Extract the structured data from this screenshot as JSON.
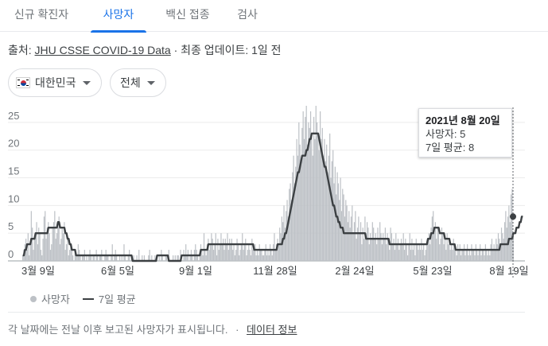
{
  "tabs": [
    {
      "label": "신규 확진자"
    },
    {
      "label": "사망자"
    },
    {
      "label": "백신 접종"
    },
    {
      "label": "검사"
    }
  ],
  "active_tab": "사망자",
  "source": {
    "prefix": "출처: ",
    "link": "JHU CSSE COVID-19 Data",
    "suffix": " · 최종 업데이트: 1일 전"
  },
  "filters": {
    "country": "대한민국",
    "country_flag_icon": "south-korea-flag-icon",
    "scope": "전체"
  },
  "tooltip": {
    "date": "2021년 8월 20일",
    "deaths": "사망자: 5",
    "average": "7일 평균: 8"
  },
  "legend": {
    "bars": "사망자",
    "line": "7일 평균"
  },
  "footer": {
    "note": "각 날짜에는 전날 이후 보고된 사망자가 표시됩니다.",
    "separator": "·",
    "link": "데이터 정보"
  },
  "colors": {
    "accent": "#1a73e8",
    "bars": "#bdc1c6",
    "line": "#3c4043"
  },
  "chart_data": {
    "type": "bar",
    "title": "",
    "xlabel": "",
    "ylabel": "",
    "ylim": [
      0,
      28
    ],
    "yticks": [
      0,
      5,
      10,
      15,
      20,
      25
    ],
    "x_tick_labels": [
      "3월 9일",
      "6월 5일",
      "9월 1일",
      "11월 28일",
      "2월 24일",
      "5월 23일",
      "8월 19일"
    ],
    "grid": true,
    "legend_position": "bottom-left",
    "series": [
      {
        "name": "사망자",
        "type": "bar",
        "values": [
          1,
          2,
          3,
          4,
          2,
          5,
          1,
          3,
          9,
          6,
          2,
          4,
          5,
          7,
          3,
          6,
          5,
          2,
          1,
          4,
          8,
          9,
          4,
          6,
          7,
          5,
          2,
          3,
          6,
          7,
          9,
          4,
          5,
          6,
          8,
          3,
          4,
          6,
          5,
          7,
          2,
          3,
          4,
          1,
          2,
          3,
          2,
          1,
          0,
          2,
          1,
          1,
          3,
          2,
          1,
          0,
          1,
          1,
          2,
          0,
          1,
          0,
          1,
          2,
          1,
          0,
          1,
          1,
          0,
          2,
          1,
          0,
          1,
          1,
          2,
          0,
          0,
          1,
          2,
          1,
          1,
          0,
          0,
          1,
          3,
          0,
          1,
          2,
          1,
          0,
          0,
          1,
          0,
          1,
          0,
          3,
          1,
          0,
          0,
          1,
          2,
          0,
          1,
          0,
          1,
          0,
          0,
          1,
          0,
          2,
          0,
          0,
          1,
          0,
          1,
          0,
          0,
          0,
          1,
          2,
          0,
          1,
          0,
          0,
          1,
          0,
          0,
          0,
          1,
          0,
          2,
          1,
          0,
          0,
          1,
          1,
          0,
          2,
          0,
          0,
          0,
          1,
          0,
          1,
          0,
          1,
          1,
          0,
          2,
          0,
          0,
          2,
          1,
          3,
          1,
          2,
          0,
          1,
          2,
          1,
          0,
          2,
          3,
          2,
          1,
          0,
          1,
          3,
          2,
          1,
          5,
          2,
          1,
          3,
          4,
          2,
          3,
          5,
          4,
          2,
          3,
          5,
          1,
          4,
          2,
          3,
          5,
          3,
          4,
          2,
          4,
          3,
          5,
          2,
          4,
          3,
          4,
          2,
          3,
          1,
          2,
          4,
          3,
          1,
          2,
          3,
          5,
          2,
          3,
          4,
          1,
          2,
          3,
          2,
          1,
          4,
          2,
          2,
          3,
          1,
          2,
          1,
          3,
          2,
          2,
          1,
          1,
          2,
          3,
          1,
          2,
          1,
          3,
          2,
          1,
          3,
          5,
          2,
          3,
          4,
          3,
          6,
          5,
          8,
          7,
          10,
          6,
          9,
          11,
          8,
          13,
          14,
          11,
          16,
          19,
          14,
          17,
          22,
          19,
          25,
          21,
          18,
          24,
          27,
          22,
          26,
          28,
          21,
          25,
          24,
          27,
          23,
          19,
          26,
          22,
          28,
          25,
          23,
          20,
          27,
          22,
          24,
          19,
          22,
          18,
          21,
          16,
          19,
          23,
          15,
          18,
          20,
          14,
          17,
          12,
          16,
          14,
          11,
          15,
          9,
          13,
          12,
          8,
          11,
          10,
          7,
          9,
          6,
          8,
          10,
          5,
          7,
          9,
          4,
          6,
          8,
          5,
          7,
          3,
          6,
          4,
          8,
          5,
          7,
          6,
          3,
          5,
          4,
          7,
          6,
          4,
          5,
          3,
          6,
          4,
          7,
          5,
          3,
          5,
          4,
          6,
          3,
          5,
          4,
          2,
          6,
          5,
          3,
          4,
          2,
          5,
          3,
          4,
          2,
          3,
          4,
          3,
          5,
          2,
          4,
          3,
          1,
          3,
          5,
          2,
          4,
          2,
          3,
          1,
          4,
          3,
          2,
          3,
          2,
          4,
          2,
          3,
          1,
          2,
          3,
          4,
          5,
          3,
          6,
          8,
          9,
          5,
          7,
          4,
          6,
          5,
          3,
          4,
          6,
          5,
          3,
          4,
          2,
          5,
          3,
          4,
          2,
          3,
          2,
          4,
          3,
          2,
          1,
          3,
          2,
          3,
          1,
          2,
          2,
          3,
          1,
          2,
          3,
          1,
          2,
          1,
          3,
          2,
          2,
          1,
          3,
          2,
          1,
          2,
          3,
          1,
          2,
          2,
          1,
          3,
          2,
          1,
          2,
          1,
          3,
          4,
          2,
          3,
          2,
          4,
          3,
          5,
          4,
          3,
          6,
          5,
          4,
          7,
          9,
          6,
          8,
          10,
          7,
          12,
          13,
          5
        ]
      },
      {
        "name": "7일 평균",
        "type": "line",
        "values": [
          1,
          1,
          2,
          2,
          3,
          3,
          3,
          3,
          4,
          4,
          4,
          4,
          5,
          5,
          5,
          5,
          5,
          5,
          5,
          5,
          5,
          5,
          5,
          5,
          6,
          6,
          6,
          6,
          6,
          6,
          6,
          6,
          6,
          7,
          7,
          6,
          6,
          6,
          6,
          6,
          5,
          5,
          4,
          4,
          3,
          3,
          2,
          2,
          2,
          2,
          1,
          1,
          1,
          1,
          1,
          1,
          1,
          1,
          1,
          1,
          1,
          1,
          1,
          1,
          1,
          1,
          1,
          1,
          1,
          1,
          1,
          1,
          1,
          1,
          1,
          1,
          1,
          1,
          1,
          1,
          1,
          1,
          1,
          1,
          1,
          1,
          1,
          1,
          1,
          1,
          1,
          1,
          1,
          1,
          1,
          1,
          1,
          1,
          1,
          1,
          1,
          1,
          1,
          0,
          0,
          0,
          0,
          0,
          0,
          0,
          0,
          0,
          0,
          0,
          0,
          0,
          0,
          0,
          0,
          0,
          0,
          0,
          0,
          0,
          0,
          0,
          1,
          1,
          1,
          1,
          1,
          1,
          1,
          1,
          1,
          1,
          1,
          0,
          0,
          0,
          0,
          0,
          0,
          0,
          0,
          0,
          0,
          0,
          0,
          1,
          1,
          1,
          1,
          1,
          1,
          1,
          1,
          1,
          1,
          1,
          1,
          1,
          1,
          1,
          1,
          1,
          1,
          2,
          2,
          2,
          2,
          2,
          2,
          2,
          3,
          3,
          3,
          3,
          3,
          3,
          3,
          3,
          3,
          3,
          3,
          3,
          3,
          3,
          3,
          3,
          3,
          3,
          3,
          3,
          3,
          3,
          3,
          3,
          3,
          3,
          3,
          3,
          3,
          3,
          3,
          3,
          3,
          3,
          3,
          3,
          3,
          3,
          3,
          3,
          3,
          3,
          3,
          2,
          2,
          2,
          2,
          2,
          2,
          2,
          2,
          2,
          2,
          2,
          2,
          2,
          2,
          2,
          2,
          2,
          2,
          2,
          2,
          2,
          2,
          3,
          3,
          3,
          3,
          3,
          4,
          4,
          5,
          5,
          6,
          7,
          8,
          9,
          10,
          11,
          12,
          13,
          14,
          15,
          16,
          16,
          17,
          18,
          19,
          19,
          19,
          19,
          20,
          20,
          21,
          22,
          22,
          23,
          23,
          23,
          23,
          23,
          23,
          23,
          22,
          21,
          20,
          19,
          18,
          17,
          17,
          16,
          15,
          14,
          13,
          12,
          11,
          10,
          10,
          9,
          8,
          8,
          7,
          7,
          6,
          6,
          6,
          5,
          5,
          5,
          5,
          5,
          5,
          5,
          5,
          5,
          5,
          5,
          5,
          5,
          5,
          5,
          5,
          5,
          5,
          5,
          5,
          5,
          4,
          4,
          4,
          4,
          4,
          4,
          4,
          4,
          4,
          4,
          4,
          4,
          4,
          4,
          4,
          4,
          4,
          4,
          4,
          4,
          4,
          4,
          3,
          3,
          3,
          3,
          3,
          3,
          3,
          3,
          3,
          3,
          3,
          3,
          3,
          3,
          3,
          3,
          3,
          3,
          3,
          3,
          3,
          3,
          3,
          3,
          3,
          3,
          3,
          3,
          3,
          3,
          3,
          3,
          3,
          3,
          3,
          3,
          4,
          4,
          4,
          5,
          5,
          5,
          6,
          6,
          6,
          6,
          6,
          5,
          5,
          5,
          5,
          5,
          4,
          4,
          4,
          4,
          4,
          3,
          3,
          3,
          3,
          3,
          2,
          2,
          2,
          2,
          2,
          2,
          2,
          2,
          2,
          2,
          2,
          2,
          2,
          2,
          2,
          2,
          2,
          2,
          2,
          2,
          2,
          2,
          2,
          2,
          2,
          2,
          2,
          2,
          2,
          2,
          2,
          2,
          2,
          2,
          2,
          2,
          2,
          2,
          2,
          2,
          2,
          2,
          3,
          3,
          3,
          3,
          3,
          3,
          3,
          3,
          4,
          4,
          4,
          4,
          5,
          5,
          5,
          6,
          6,
          6,
          7,
          7,
          8,
          8
        ]
      }
    ],
    "highlight": {
      "label": "2021년 8월 20일",
      "deaths": 5,
      "average": 8
    }
  }
}
